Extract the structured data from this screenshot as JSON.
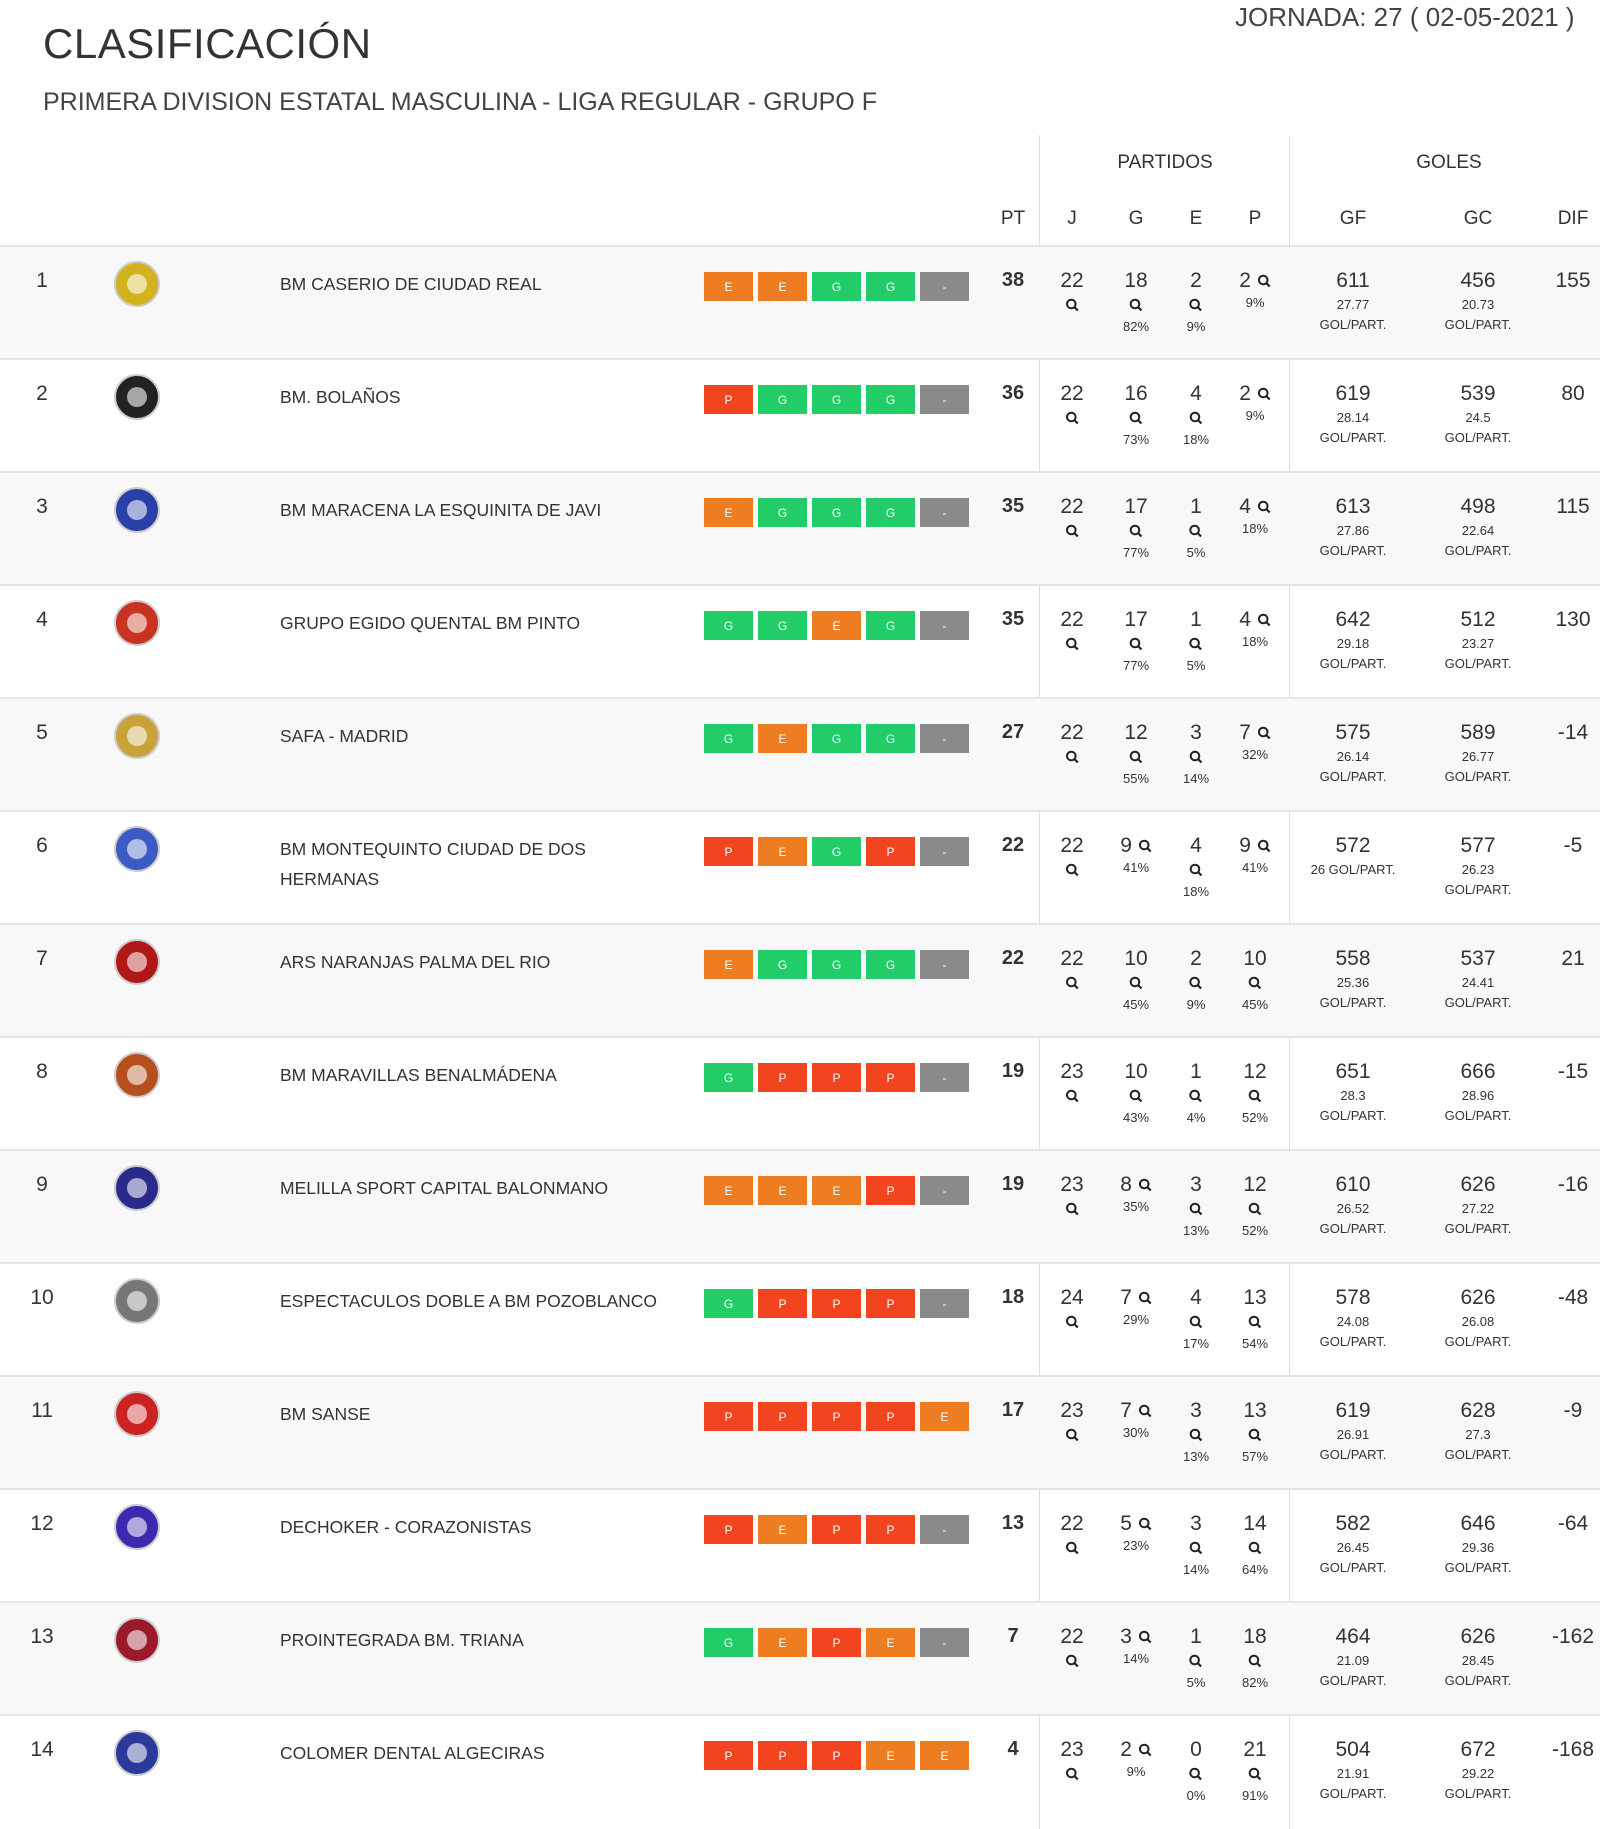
{
  "header": {
    "title": "CLASIFICACIÓN",
    "subtitle": "PRIMERA DIVISION ESTATAL MASCULINA - LIGA REGULAR - GRUPO F",
    "jornada": "JORNADA: 27 ( 02-05-2021 )"
  },
  "columns": {
    "partidos": "PARTIDOS",
    "goles": "GOLES",
    "pt": "PT",
    "j": "J",
    "g": "G",
    "e": "E",
    "p": "P",
    "gf": "GF",
    "gc": "GC",
    "dif": "DIF",
    "avg_unit": "GOL/PART."
  },
  "colors": {
    "E": "#ee7d22",
    "G": "#22cc66",
    "P": "#f2441e",
    "-": "#8a8a8a"
  },
  "rows": [
    {
      "pos": "1",
      "team": "BM CASERIO DE CIUDAD REAL",
      "logo_color": "#d4b21e",
      "form": [
        "E",
        "E",
        "G",
        "G",
        "-"
      ],
      "pt": "38",
      "j": "22",
      "g": "18",
      "g_pct": "82%",
      "e": "2",
      "e_pct": "9%",
      "p": "2",
      "p_pct": "9%",
      "gf": "611",
      "gf_avg": "27.77",
      "gc": "456",
      "gc_avg": "20.73",
      "dif": "155"
    },
    {
      "pos": "2",
      "team": "BM. BOLAÑOS",
      "logo_color": "#222222",
      "form": [
        "P",
        "G",
        "G",
        "G",
        "-"
      ],
      "pt": "36",
      "j": "22",
      "g": "16",
      "g_pct": "73%",
      "e": "4",
      "e_pct": "18%",
      "p": "2",
      "p_pct": "9%",
      "gf": "619",
      "gf_avg": "28.14",
      "gc": "539",
      "gc_avg": "24.5",
      "dif": "80"
    },
    {
      "pos": "3",
      "team": "BM MARACENA LA ESQUINITA DE JAVI",
      "logo_color": "#2a3fa8",
      "form": [
        "E",
        "G",
        "G",
        "G",
        "-"
      ],
      "pt": "35",
      "j": "22",
      "g": "17",
      "g_pct": "77%",
      "e": "1",
      "e_pct": "5%",
      "p": "4",
      "p_pct": "18%",
      "gf": "613",
      "gf_avg": "27.86",
      "gc": "498",
      "gc_avg": "22.64",
      "dif": "115"
    },
    {
      "pos": "4",
      "team": "GRUPO EGIDO QUENTAL BM PINTO",
      "logo_color": "#c8321e",
      "form": [
        "G",
        "G",
        "E",
        "G",
        "-"
      ],
      "pt": "35",
      "j": "22",
      "g": "17",
      "g_pct": "77%",
      "e": "1",
      "e_pct": "5%",
      "p": "4",
      "p_pct": "18%",
      "gf": "642",
      "gf_avg": "29.18",
      "gc": "512",
      "gc_avg": "23.27",
      "dif": "130"
    },
    {
      "pos": "5",
      "team": "SAFA - MADRID",
      "logo_color": "#c9a23a",
      "form": [
        "G",
        "E",
        "G",
        "G",
        "-"
      ],
      "pt": "27",
      "j": "22",
      "g": "12",
      "g_pct": "55%",
      "e": "3",
      "e_pct": "14%",
      "p": "7",
      "p_pct": "32%",
      "gf": "575",
      "gf_avg": "26.14",
      "gc": "589",
      "gc_avg": "26.77",
      "dif": "-14"
    },
    {
      "pos": "6",
      "team": "BM MONTEQUINTO CIUDAD DE DOS HERMANAS",
      "logo_color": "#3b5bc4",
      "form": [
        "P",
        "E",
        "G",
        "P",
        "-"
      ],
      "pt": "22",
      "j": "22",
      "g": "9",
      "g_pct": "41%",
      "e": "4",
      "e_pct": "18%",
      "p": "9",
      "p_pct": "41%",
      "gf": "572",
      "gf_avg": "26",
      "gc": "577",
      "gc_avg": "26.23",
      "dif": "-5"
    },
    {
      "pos": "7",
      "team": "ARS NARANJAS PALMA DEL RIO",
      "logo_color": "#b01818",
      "form": [
        "E",
        "G",
        "G",
        "G",
        "-"
      ],
      "pt": "22",
      "j": "22",
      "g": "10",
      "g_pct": "45%",
      "e": "2",
      "e_pct": "9%",
      "p": "10",
      "p_pct": "45%",
      "gf": "558",
      "gf_avg": "25.36",
      "gc": "537",
      "gc_avg": "24.41",
      "dif": "21"
    },
    {
      "pos": "8",
      "team": "BM MARAVILLAS BENALMÁDENA",
      "logo_color": "#b5501e",
      "form": [
        "G",
        "P",
        "P",
        "P",
        "-"
      ],
      "pt": "19",
      "j": "23",
      "g": "10",
      "g_pct": "43%",
      "e": "1",
      "e_pct": "4%",
      "p": "12",
      "p_pct": "52%",
      "gf": "651",
      "gf_avg": "28.3",
      "gc": "666",
      "gc_avg": "28.96",
      "dif": "-15"
    },
    {
      "pos": "9",
      "team": "MELILLA SPORT CAPITAL BALONMANO",
      "logo_color": "#2a2a8a",
      "form": [
        "E",
        "E",
        "E",
        "P",
        "-"
      ],
      "pt": "19",
      "j": "23",
      "g": "8",
      "g_pct": "35%",
      "e": "3",
      "e_pct": "13%",
      "p": "12",
      "p_pct": "52%",
      "gf": "610",
      "gf_avg": "26.52",
      "gc": "626",
      "gc_avg": "27.22",
      "dif": "-16"
    },
    {
      "pos": "10",
      "team": "ESPECTACULOS DOBLE A BM POZOBLANCO",
      "logo_color": "#777777",
      "form": [
        "G",
        "P",
        "P",
        "P",
        "-"
      ],
      "pt": "18",
      "j": "24",
      "g": "7",
      "g_pct": "29%",
      "e": "4",
      "e_pct": "17%",
      "p": "13",
      "p_pct": "54%",
      "gf": "578",
      "gf_avg": "24.08",
      "gc": "626",
      "gc_avg": "26.08",
      "dif": "-48"
    },
    {
      "pos": "11",
      "team": "BM SANSE",
      "logo_color": "#cc2222",
      "form": [
        "P",
        "P",
        "P",
        "P",
        "E"
      ],
      "pt": "17",
      "j": "23",
      "g": "7",
      "g_pct": "30%",
      "e": "3",
      "e_pct": "13%",
      "p": "13",
      "p_pct": "57%",
      "gf": "619",
      "gf_avg": "26.91",
      "gc": "628",
      "gc_avg": "27.3",
      "dif": "-9"
    },
    {
      "pos": "12",
      "team": "DECHOKER - CORAZONISTAS",
      "logo_color": "#3a2ab0",
      "form": [
        "P",
        "E",
        "P",
        "P",
        "-"
      ],
      "pt": "13",
      "j": "22",
      "g": "5",
      "g_pct": "23%",
      "e": "3",
      "e_pct": "14%",
      "p": "14",
      "p_pct": "64%",
      "gf": "582",
      "gf_avg": "26.45",
      "gc": "646",
      "gc_avg": "29.36",
      "dif": "-64"
    },
    {
      "pos": "13",
      "team": "PROINTEGRADA BM. TRIANA",
      "logo_color": "#9a1a2a",
      "form": [
        "G",
        "E",
        "P",
        "E",
        "-"
      ],
      "pt": "7",
      "j": "22",
      "g": "3",
      "g_pct": "14%",
      "e": "1",
      "e_pct": "5%",
      "p": "18",
      "p_pct": "82%",
      "gf": "464",
      "gf_avg": "21.09",
      "gc": "626",
      "gc_avg": "28.45",
      "dif": "-162"
    },
    {
      "pos": "14",
      "team": "COLOMER DENTAL ALGECIRAS",
      "logo_color": "#2a3a9a",
      "form": [
        "P",
        "P",
        "P",
        "E",
        "E"
      ],
      "pt": "4",
      "j": "23",
      "g": "2",
      "g_pct": "9%",
      "e": "0",
      "e_pct": "0%",
      "p": "21",
      "p_pct": "91%",
      "gf": "504",
      "gf_avg": "21.91",
      "gc": "672",
      "gc_avg": "29.22",
      "dif": "-168"
    }
  ]
}
